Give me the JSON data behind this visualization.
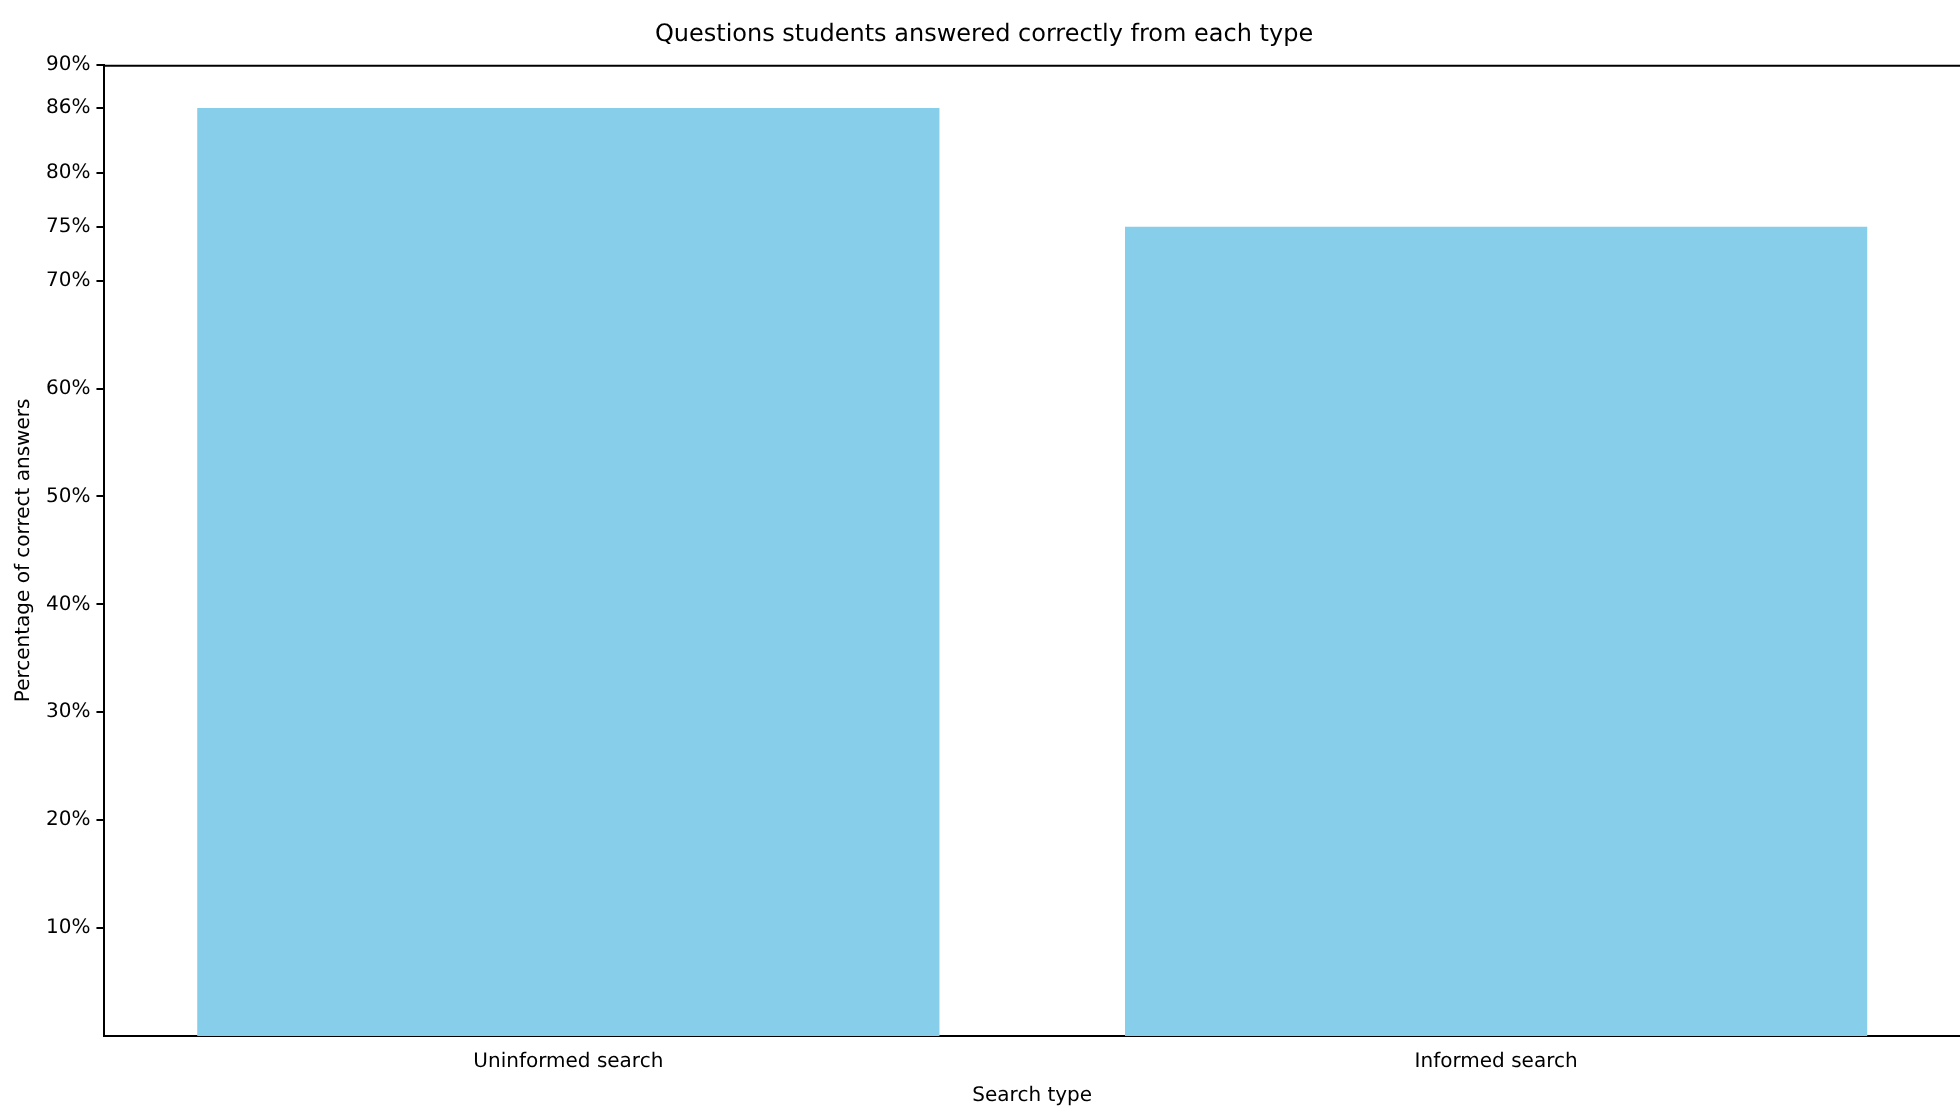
{
  "chart_data": {
    "type": "bar",
    "title": "Questions students answered correctly from each type",
    "xlabel": "Search type",
    "ylabel": "Percentage of correct answers",
    "categories": [
      "Uninformed search",
      "Informed search"
    ],
    "values": [
      86,
      75
    ],
    "color": "#87ceeb",
    "ylim": [
      0,
      90
    ],
    "yticks": [
      {
        "value": 10,
        "label": "10%"
      },
      {
        "value": 20,
        "label": "20%"
      },
      {
        "value": 30,
        "label": "30%"
      },
      {
        "value": 40,
        "label": "40%"
      },
      {
        "value": 50,
        "label": "50%"
      },
      {
        "value": 60,
        "label": "60%"
      },
      {
        "value": 70,
        "label": "70%"
      },
      {
        "value": 75,
        "label": "75%"
      },
      {
        "value": 80,
        "label": "80%"
      },
      {
        "value": 86,
        "label": "86%"
      },
      {
        "value": 90,
        "label": "90%"
      }
    ],
    "grid": false,
    "legend": false
  }
}
